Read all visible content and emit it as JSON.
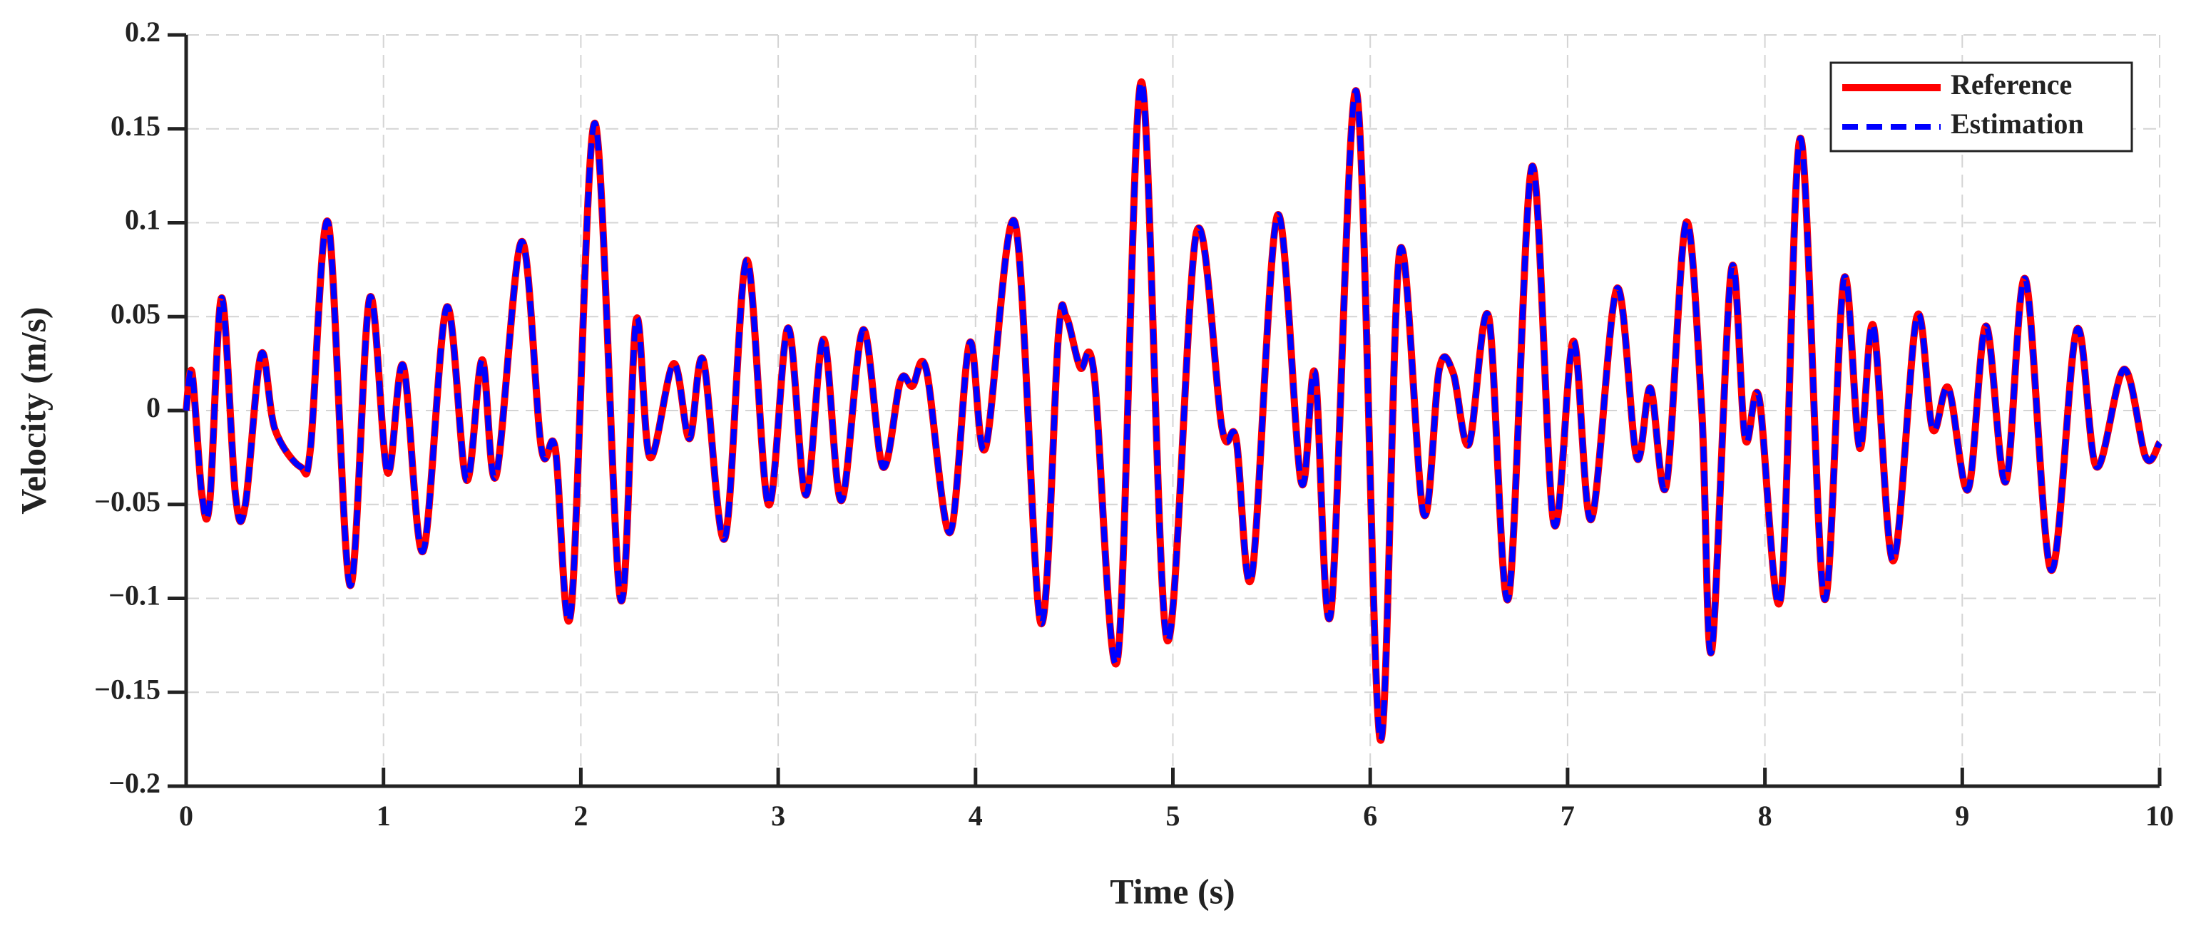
{
  "chart_data": {
    "type": "line",
    "xlabel": "Time (s)",
    "ylabel": "Velocity (m/s)",
    "x": [
      0,
      0.03,
      0.08,
      0.12,
      0.18,
      0.25,
      0.3,
      0.38,
      0.45,
      0.58,
      0.63,
      0.72,
      0.83,
      0.93,
      1.02,
      1.1,
      1.2,
      1.32,
      1.42,
      1.5,
      1.57,
      1.7,
      1.8,
      1.87,
      1.95,
      2.07,
      2.2,
      2.28,
      2.35,
      2.47,
      2.55,
      2.62,
      2.73,
      2.84,
      2.95,
      3.05,
      3.14,
      3.23,
      3.32,
      3.43,
      3.53,
      3.62,
      3.68,
      3.75,
      3.87,
      3.97,
      4.05,
      4.2,
      4.33,
      4.42,
      4.46,
      4.53,
      4.6,
      4.72,
      4.84,
      4.97,
      5.12,
      5.25,
      5.32,
      5.4,
      5.53,
      5.65,
      5.72,
      5.8,
      5.93,
      6.05,
      6.15,
      6.27,
      6.35,
      6.42,
      6.5,
      6.6,
      6.7,
      6.82,
      6.93,
      7.03,
      7.12,
      7.25,
      7.35,
      7.42,
      7.5,
      7.6,
      7.68,
      7.73,
      7.83,
      7.9,
      7.97,
      8.08,
      8.18,
      8.3,
      8.4,
      8.48,
      8.55,
      8.65,
      8.77,
      8.85,
      8.93,
      9.03,
      9.12,
      9.22,
      9.32,
      9.45,
      9.58,
      9.68,
      9.82,
      9.93,
      10
    ],
    "series": [
      {
        "name": "Reference",
        "color": "#ff0000",
        "dashed": false,
        "values": [
          0,
          0.02,
          -0.045,
          -0.048,
          0.06,
          -0.045,
          -0.05,
          0.03,
          -0.01,
          -0.03,
          -0.02,
          0.1,
          -0.093,
          0.06,
          -0.033,
          0.024,
          -0.075,
          0.055,
          -0.037,
          0.027,
          -0.035,
          0.09,
          -0.02,
          -0.02,
          -0.107,
          0.153,
          -0.1,
          0.048,
          -0.025,
          0.025,
          -0.015,
          0.027,
          -0.068,
          0.08,
          -0.05,
          0.044,
          -0.045,
          0.038,
          -0.048,
          0.043,
          -0.03,
          0.016,
          0.013,
          0.022,
          -0.065,
          0.036,
          -0.02,
          0.1,
          -0.113,
          0.04,
          0.05,
          0.023,
          0.02,
          -0.132,
          0.175,
          -0.122,
          0.095,
          -0.01,
          -0.015,
          -0.088,
          0.104,
          -0.038,
          0.02,
          -0.108,
          0.17,
          -0.175,
          0.085,
          -0.055,
          0.022,
          0.02,
          -0.018,
          0.05,
          -0.1,
          0.13,
          -0.06,
          0.037,
          -0.058,
          0.065,
          -0.025,
          0.012,
          -0.04,
          0.1,
          0,
          -0.128,
          0.075,
          -0.015,
          0.007,
          -0.1,
          0.145,
          -0.1,
          0.07,
          -0.02,
          0.045,
          -0.08,
          0.05,
          -0.01,
          0.012,
          -0.042,
          0.045,
          -0.038,
          0.07,
          -0.085,
          0.043,
          -0.03,
          0.022,
          -0.025,
          -0.017
        ]
      },
      {
        "name": "Estimation",
        "color": "#0000ff",
        "dashed": true,
        "values": [
          0,
          0.02,
          -0.045,
          -0.048,
          0.06,
          -0.045,
          -0.05,
          0.03,
          -0.01,
          -0.03,
          -0.02,
          0.1,
          -0.093,
          0.06,
          -0.033,
          0.024,
          -0.075,
          0.055,
          -0.037,
          0.027,
          -0.035,
          0.09,
          -0.02,
          -0.02,
          -0.107,
          0.153,
          -0.1,
          0.048,
          -0.025,
          0.025,
          -0.015,
          0.027,
          -0.068,
          0.08,
          -0.05,
          0.044,
          -0.045,
          0.038,
          -0.048,
          0.043,
          -0.03,
          0.016,
          0.013,
          0.022,
          -0.065,
          0.036,
          -0.02,
          0.1,
          -0.113,
          0.04,
          0.05,
          0.023,
          0.02,
          -0.132,
          0.175,
          -0.122,
          0.095,
          -0.01,
          -0.015,
          -0.088,
          0.104,
          -0.038,
          0.02,
          -0.108,
          0.17,
          -0.175,
          0.085,
          -0.055,
          0.022,
          0.02,
          -0.018,
          0.05,
          -0.1,
          0.13,
          -0.06,
          0.037,
          -0.058,
          0.065,
          -0.025,
          0.012,
          -0.04,
          0.1,
          0,
          -0.128,
          0.075,
          -0.015,
          0.007,
          -0.1,
          0.145,
          -0.1,
          0.07,
          -0.02,
          0.045,
          -0.08,
          0.05,
          -0.01,
          0.012,
          -0.042,
          0.045,
          -0.038,
          0.07,
          -0.085,
          0.043,
          -0.03,
          0.022,
          -0.025,
          -0.017
        ]
      }
    ],
    "xlim": [
      0,
      10
    ],
    "xticks": [
      0,
      1,
      2,
      3,
      4,
      5,
      6,
      7,
      8,
      9,
      10
    ],
    "ylim": [
      -0.2,
      0.2
    ],
    "yticks": [
      {
        "value": -0.2,
        "label": "−0.2"
      },
      {
        "value": -0.15,
        "label": "−0.15"
      },
      {
        "value": -0.1,
        "label": "−0.1"
      },
      {
        "value": -0.05,
        "label": "−0.05"
      },
      0,
      0.05,
      0.1,
      0.15,
      0.2
    ],
    "grid": true,
    "legend": "upper right"
  }
}
